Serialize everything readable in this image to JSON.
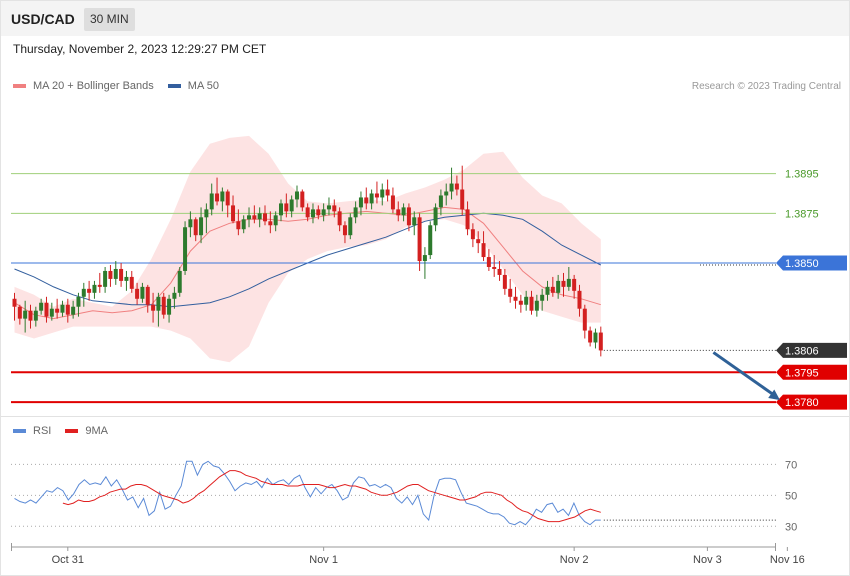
{
  "header": {
    "symbol": "USD/CAD",
    "timeframe": "30 MIN",
    "datetime": "Thursday, November 2, 2023 12:29:27 PM CET"
  },
  "legend": {
    "ma20_label": "MA 20 + Bollinger Bands",
    "ma50_label": "MA 50",
    "rsi_label": "RSI",
    "rsi_ma_label": "9MA"
  },
  "credit": "Research © 2023 Trading Central",
  "colors": {
    "up": "#2d7a2d",
    "down": "#d32020",
    "ma20": "#f08080",
    "ma50": "#335f9e",
    "band_fill": "#fde3e3",
    "resistance": "#9fcf7a",
    "pivot": "#3b74d8",
    "support": "#e00000",
    "current": "#333333",
    "rsi": "#5b8ad6",
    "rsi_ma": "#e02020",
    "arrow": "#2f6197"
  },
  "chart_data": {
    "type": "candlestick",
    "y_range": [
      1.3774,
      1.3924
    ],
    "x_labels": [
      "Oct 31",
      "Nov 1",
      "Nov 2",
      "Nov 3",
      "Nov 16"
    ],
    "x_label_index": [
      10,
      58,
      105,
      130,
      145
    ],
    "levels": [
      {
        "value": 1.3895,
        "label": "1.3895",
        "kind": "resistance"
      },
      {
        "value": 1.3875,
        "label": "1.3875",
        "kind": "resistance"
      },
      {
        "value": 1.385,
        "label": "1.3850",
        "kind": "pivot"
      },
      {
        "value": 1.3806,
        "label": "1.3806",
        "kind": "current"
      },
      {
        "value": 1.3795,
        "label": "1.3795",
        "kind": "support"
      },
      {
        "value": 1.378,
        "label": "1.3780",
        "kind": "support"
      }
    ],
    "forecast_arrow": {
      "from": [
        130,
        1.3806
      ],
      "to": [
        144,
        1.378
      ]
    },
    "ohlc": [
      [
        1.3832,
        1.3835,
        1.3821,
        1.3828
      ],
      [
        1.3828,
        1.3829,
        1.3819,
        1.3822
      ],
      [
        1.3822,
        1.3831,
        1.3815,
        1.3826
      ],
      [
        1.3826,
        1.3829,
        1.3817,
        1.3821
      ],
      [
        1.3821,
        1.3828,
        1.3818,
        1.3826
      ],
      [
        1.3826,
        1.3832,
        1.3824,
        1.383
      ],
      [
        1.383,
        1.3833,
        1.382,
        1.3823
      ],
      [
        1.3823,
        1.383,
        1.3821,
        1.3827
      ],
      [
        1.3827,
        1.3832,
        1.3822,
        1.3825
      ],
      [
        1.3825,
        1.3831,
        1.3823,
        1.3829
      ],
      [
        1.3829,
        1.3832,
        1.382,
        1.3824
      ],
      [
        1.3824,
        1.3831,
        1.3822,
        1.3828
      ],
      [
        1.3828,
        1.3835,
        1.3823,
        1.3833
      ],
      [
        1.3833,
        1.384,
        1.3828,
        1.3837
      ],
      [
        1.3837,
        1.3841,
        1.3831,
        1.3835
      ],
      [
        1.3835,
        1.3841,
        1.3832,
        1.3839
      ],
      [
        1.3839,
        1.3845,
        1.3835,
        1.3838
      ],
      [
        1.3838,
        1.3848,
        1.3835,
        1.3846
      ],
      [
        1.3846,
        1.3849,
        1.3838,
        1.3842
      ],
      [
        1.3842,
        1.3851,
        1.3839,
        1.3847
      ],
      [
        1.3847,
        1.385,
        1.3838,
        1.3841
      ],
      [
        1.3841,
        1.3846,
        1.3836,
        1.3843
      ],
      [
        1.3843,
        1.3846,
        1.3835,
        1.3837
      ],
      [
        1.3837,
        1.384,
        1.3829,
        1.3832
      ],
      [
        1.3832,
        1.384,
        1.383,
        1.3838
      ],
      [
        1.3838,
        1.3839,
        1.3825,
        1.3829
      ],
      [
        1.3829,
        1.3835,
        1.382,
        1.3826
      ],
      [
        1.3826,
        1.3835,
        1.3818,
        1.3833
      ],
      [
        1.3833,
        1.3835,
        1.3822,
        1.3824
      ],
      [
        1.3824,
        1.3834,
        1.382,
        1.3832
      ],
      [
        1.3832,
        1.3838,
        1.3827,
        1.3835
      ],
      [
        1.3835,
        1.3848,
        1.3833,
        1.3846
      ],
      [
        1.3846,
        1.3871,
        1.3844,
        1.3868
      ],
      [
        1.3868,
        1.3876,
        1.3863,
        1.3872
      ],
      [
        1.3872,
        1.3873,
        1.3861,
        1.3864
      ],
      [
        1.3864,
        1.3878,
        1.386,
        1.3873
      ],
      [
        1.3873,
        1.388,
        1.3865,
        1.3877
      ],
      [
        1.3877,
        1.389,
        1.3874,
        1.3885
      ],
      [
        1.3885,
        1.3893,
        1.3879,
        1.3881
      ],
      [
        1.3881,
        1.3888,
        1.3876,
        1.3886
      ],
      [
        1.3886,
        1.3887,
        1.3873,
        1.3879
      ],
      [
        1.3879,
        1.3884,
        1.387,
        1.3871
      ],
      [
        1.3871,
        1.3877,
        1.3864,
        1.3867
      ],
      [
        1.3867,
        1.3874,
        1.3865,
        1.3872
      ],
      [
        1.3872,
        1.3878,
        1.3868,
        1.3874
      ],
      [
        1.3874,
        1.3879,
        1.387,
        1.3872
      ],
      [
        1.3872,
        1.3878,
        1.3868,
        1.3875
      ],
      [
        1.3875,
        1.3879,
        1.3869,
        1.3871
      ],
      [
        1.3871,
        1.3876,
        1.3865,
        1.3869
      ],
      [
        1.3869,
        1.3876,
        1.3866,
        1.3874
      ],
      [
        1.3874,
        1.3882,
        1.3871,
        1.388
      ],
      [
        1.388,
        1.3885,
        1.3873,
        1.3876
      ],
      [
        1.3876,
        1.3884,
        1.3873,
        1.3882
      ],
      [
        1.3882,
        1.3889,
        1.3878,
        1.3886
      ],
      [
        1.3886,
        1.3887,
        1.3876,
        1.3878
      ],
      [
        1.3878,
        1.388,
        1.3871,
        1.3873
      ],
      [
        1.3873,
        1.388,
        1.387,
        1.3877
      ],
      [
        1.3877,
        1.3879,
        1.3872,
        1.3874
      ],
      [
        1.3874,
        1.388,
        1.3871,
        1.3877
      ],
      [
        1.3877,
        1.3883,
        1.3874,
        1.3879
      ],
      [
        1.3879,
        1.3882,
        1.3873,
        1.3876
      ],
      [
        1.3876,
        1.3878,
        1.3866,
        1.3869
      ],
      [
        1.3869,
        1.3871,
        1.386,
        1.3864
      ],
      [
        1.3864,
        1.3875,
        1.3862,
        1.3873
      ],
      [
        1.3873,
        1.3881,
        1.387,
        1.3878
      ],
      [
        1.3878,
        1.3886,
        1.3874,
        1.3883
      ],
      [
        1.3883,
        1.3888,
        1.3877,
        1.388
      ],
      [
        1.388,
        1.3887,
        1.3877,
        1.3885
      ],
      [
        1.3885,
        1.3891,
        1.388,
        1.3883
      ],
      [
        1.3883,
        1.389,
        1.3879,
        1.3887
      ],
      [
        1.3887,
        1.3892,
        1.3881,
        1.3884
      ],
      [
        1.3884,
        1.3888,
        1.3875,
        1.3877
      ],
      [
        1.3877,
        1.3881,
        1.3871,
        1.3874
      ],
      [
        1.3874,
        1.388,
        1.3871,
        1.3878
      ],
      [
        1.3878,
        1.388,
        1.3866,
        1.3869
      ],
      [
        1.3869,
        1.3876,
        1.3864,
        1.3873
      ],
      [
        1.3873,
        1.3875,
        1.3846,
        1.3851
      ],
      [
        1.3851,
        1.3858,
        1.3842,
        1.3854
      ],
      [
        1.3854,
        1.3871,
        1.3852,
        1.3869
      ],
      [
        1.3869,
        1.388,
        1.3866,
        1.3878
      ],
      [
        1.3878,
        1.3887,
        1.3874,
        1.3884
      ],
      [
        1.3884,
        1.389,
        1.3879,
        1.3886
      ],
      [
        1.3886,
        1.3898,
        1.3882,
        1.389
      ],
      [
        1.389,
        1.3894,
        1.3884,
        1.3887
      ],
      [
        1.3887,
        1.3899,
        1.3874,
        1.3877
      ],
      [
        1.3877,
        1.3881,
        1.3864,
        1.3867
      ],
      [
        1.3867,
        1.387,
        1.3858,
        1.3862
      ],
      [
        1.3862,
        1.3866,
        1.3855,
        1.386
      ],
      [
        1.386,
        1.3866,
        1.3851,
        1.3853
      ],
      [
        1.3853,
        1.3857,
        1.3846,
        1.3848
      ],
      [
        1.3848,
        1.3854,
        1.3843,
        1.3847
      ],
      [
        1.3847,
        1.3851,
        1.3841,
        1.3844
      ],
      [
        1.3844,
        1.3847,
        1.3834,
        1.3837
      ],
      [
        1.3837,
        1.3842,
        1.383,
        1.3833
      ],
      [
        1.3833,
        1.3838,
        1.3827,
        1.3831
      ],
      [
        1.3831,
        1.3834,
        1.3825,
        1.3829
      ],
      [
        1.3829,
        1.3836,
        1.3826,
        1.3833
      ],
      [
        1.3833,
        1.3836,
        1.3824,
        1.3826
      ],
      [
        1.3826,
        1.3834,
        1.3823,
        1.3831
      ],
      [
        1.3831,
        1.3837,
        1.3826,
        1.3834
      ],
      [
        1.3834,
        1.3841,
        1.3831,
        1.3838
      ],
      [
        1.3838,
        1.3843,
        1.3833,
        1.3835
      ],
      [
        1.3835,
        1.3844,
        1.3832,
        1.3841
      ],
      [
        1.3841,
        1.3845,
        1.3833,
        1.3838
      ],
      [
        1.3838,
        1.3848,
        1.3836,
        1.3842
      ],
      [
        1.3842,
        1.3844,
        1.3832,
        1.3836
      ],
      [
        1.3836,
        1.3839,
        1.3823,
        1.3827
      ],
      [
        1.3827,
        1.3829,
        1.3812,
        1.3816
      ],
      [
        1.3816,
        1.3818,
        1.3808,
        1.381
      ],
      [
        1.381,
        1.3817,
        1.3807,
        1.3815
      ],
      [
        1.3815,
        1.3818,
        1.3803,
        1.3806
      ]
    ],
    "bands": {
      "upper": [
        1.3838,
        1.3834,
        1.3828,
        1.3832,
        1.383,
        1.3828,
        1.3836,
        1.3852,
        1.3872,
        1.3896,
        1.391,
        1.3913,
        1.3914,
        1.3905,
        1.389,
        1.3881,
        1.388,
        1.3881,
        1.3882,
        1.3881,
        1.3885,
        1.3888,
        1.3892,
        1.3897,
        1.3905,
        1.3906,
        1.3893,
        1.3884,
        1.388,
        1.387,
        1.3862
      ],
      "lower": [
        1.3815,
        1.3812,
        1.3815,
        1.3818,
        1.3818,
        1.3818,
        1.3818,
        1.3818,
        1.3816,
        1.3812,
        1.3802,
        1.38,
        1.3808,
        1.383,
        1.3845,
        1.3852,
        1.3856,
        1.3858,
        1.3859,
        1.3862,
        1.3868,
        1.3871,
        1.3872,
        1.3869,
        1.386,
        1.3847,
        1.3834,
        1.3826,
        1.3823,
        1.382,
        1.382
      ],
      "ma20": [
        1.383,
        1.3824,
        1.3822,
        1.3824,
        1.3826,
        1.3825,
        1.3826,
        1.3829,
        1.384,
        1.3856,
        1.3866,
        1.387,
        1.3872,
        1.3872,
        1.3871,
        1.3872,
        1.3874,
        1.3875,
        1.3876,
        1.3875,
        1.3874,
        1.3876,
        1.3878,
        1.3877,
        1.387,
        1.3858,
        1.3846,
        1.3838,
        1.3834,
        1.3832,
        1.3829
      ]
    },
    "ma50": [
      1.3847,
      1.3843,
      1.3838,
      1.3834,
      1.3831,
      1.383,
      1.3829,
      1.3829,
      1.3828,
      1.3829,
      1.383,
      1.3833,
      1.3837,
      1.3842,
      1.3846,
      1.385,
      1.3854,
      1.3857,
      1.386,
      1.3863,
      1.3867,
      1.3871,
      1.3873,
      1.3874,
      1.3875,
      1.3874,
      1.3872,
      1.3866,
      1.3859,
      1.3854,
      1.3849
    ],
    "rsi": {
      "levels": [
        70,
        50,
        30
      ],
      "y_range": [
        25,
        78
      ],
      "rsi": [
        48,
        46,
        45,
        47,
        45,
        49,
        53,
        52,
        55,
        53,
        47,
        51,
        57,
        60,
        57,
        58,
        57,
        62,
        56,
        60,
        54,
        47,
        49,
        42,
        48,
        37,
        40,
        52,
        41,
        43,
        50,
        56,
        72,
        72,
        63,
        70,
        72,
        69,
        68,
        64,
        59,
        53,
        56,
        58,
        57,
        59,
        55,
        61,
        57,
        59,
        60,
        57,
        61,
        63,
        55,
        49,
        55,
        51,
        55,
        57,
        53,
        47,
        49,
        58,
        62,
        61,
        56,
        57,
        55,
        57,
        55,
        48,
        45,
        49,
        44,
        50,
        38,
        34,
        50,
        60,
        61,
        61,
        60,
        52,
        45,
        44,
        43,
        41,
        39,
        38,
        38,
        36,
        32,
        31,
        33,
        31,
        35,
        41,
        39,
        44,
        45,
        39,
        41,
        37,
        45,
        37,
        33,
        31,
        34,
        34
      ],
      "ma9": [
        45,
        44,
        45,
        47,
        46,
        46,
        47,
        49,
        50,
        52,
        53,
        54,
        54,
        56,
        57,
        57,
        56,
        54,
        52,
        50,
        49,
        48,
        47,
        45,
        46,
        48,
        51,
        53,
        56,
        59,
        62,
        64,
        66,
        66,
        65,
        63,
        62,
        61,
        59,
        58,
        57,
        57,
        57,
        56,
        56,
        56,
        57,
        57,
        57,
        57,
        56,
        55,
        55,
        56,
        57,
        56,
        56,
        55,
        54,
        52,
        51,
        50,
        50,
        51,
        52,
        54,
        56,
        57,
        57,
        55,
        53,
        52,
        51,
        50,
        49,
        48,
        47,
        47,
        48,
        49,
        51,
        52,
        52,
        51,
        50,
        47,
        45,
        42,
        40,
        39,
        37,
        35,
        34,
        33,
        33,
        33,
        34,
        35,
        36,
        38,
        40,
        41,
        40,
        39
      ]
    }
  }
}
